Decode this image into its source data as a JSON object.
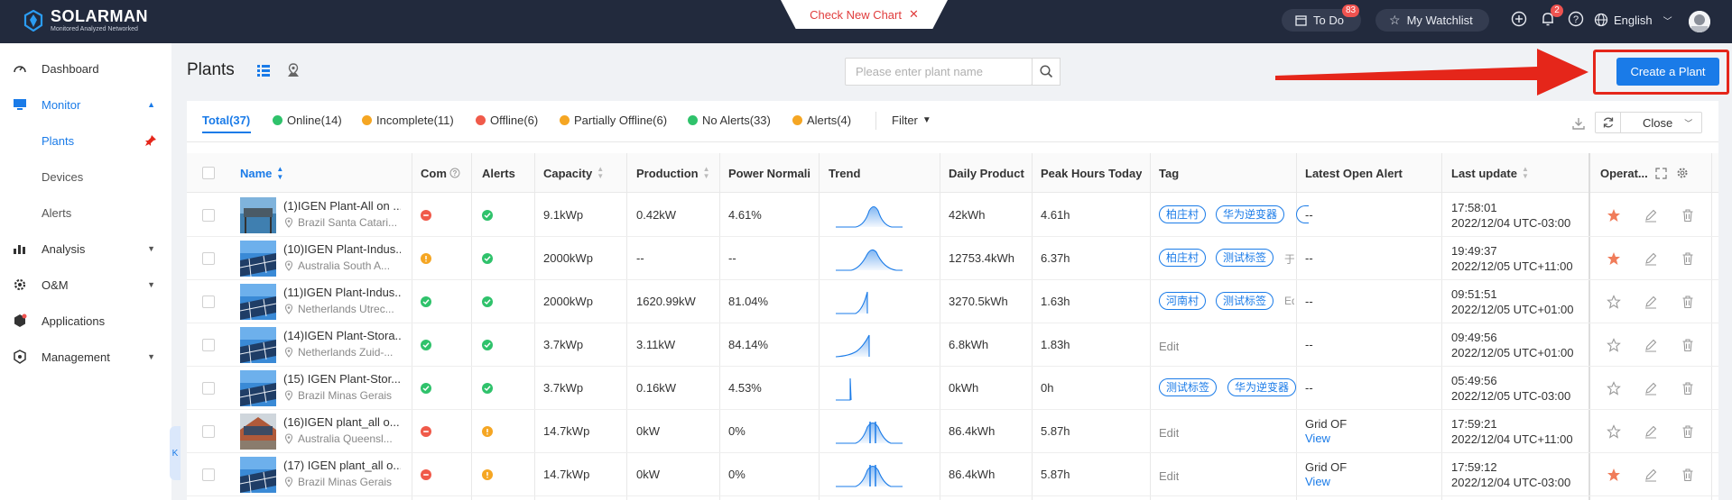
{
  "app": {
    "brand": "SOLARMAN",
    "brand_sub": "Monitored Analyzed Networked",
    "check_new_chart": "Check New Chart",
    "todo_label": "To Do",
    "todo_count": "83",
    "watchlist_label": "My Watchlist",
    "notif_count": "2",
    "language": "English"
  },
  "sidebar": {
    "items": [
      {
        "label": "Dashboard"
      },
      {
        "label": "Monitor"
      },
      {
        "label": "Plants"
      },
      {
        "label": "Devices"
      },
      {
        "label": "Alerts"
      },
      {
        "label": "Analysis"
      },
      {
        "label": "O&M"
      },
      {
        "label": "Applications"
      },
      {
        "label": "Management"
      }
    ],
    "collapse_glyph": "K"
  },
  "page": {
    "title": "Plants",
    "search_placeholder": "Please enter plant name",
    "create_label": "Create a Plant",
    "filter_label": "Filter",
    "close_label": "Close"
  },
  "filters": [
    {
      "label": "Total(37)",
      "dot": "none"
    },
    {
      "label": "Online(14)",
      "dot": "green"
    },
    {
      "label": "Incomplete(11)",
      "dot": "orange"
    },
    {
      "label": "Offline(6)",
      "dot": "red"
    },
    {
      "label": "Partially Offline(6)",
      "dot": "orange"
    },
    {
      "label": "No Alerts(33)",
      "dot": "green"
    },
    {
      "label": "Alerts(4)",
      "dot": "orange"
    }
  ],
  "columns": [
    "Name",
    "Com",
    "Alerts",
    "Capacity",
    "Production",
    "Power Normali",
    "Trend",
    "Daily Product",
    "Peak Hours Today",
    "Tag",
    "Latest Open Alert",
    "Last update",
    "Operat..."
  ],
  "rows": [
    {
      "name": "(1)IGEN Plant-All on ...",
      "loc": "Brazil Santa Catari...",
      "com": "err",
      "alert": "ok",
      "capacity": "9.1kWp",
      "production": "0.42kW",
      "power_norm": "4.61%",
      "daily": "42kWh",
      "peak": "4.61h",
      "tags": [
        "柏庄村",
        "华为逆变器",
        ""
      ],
      "edit": "",
      "alert_text": "--",
      "alert_link": "",
      "time": "17:58:01",
      "date": "2022/12/04 UTC-03:00",
      "fav": true,
      "thumb": "sea",
      "trend": "bell-dense"
    },
    {
      "name": "(10)IGEN Plant-Indus...",
      "loc": "Australia South A...",
      "com": "warn",
      "alert": "ok",
      "capacity": "2000kWp",
      "production": "--",
      "power_norm": "--",
      "daily": "12753.4kWh",
      "peak": "6.37h",
      "tags": [
        "柏庄村",
        "测试标签",
        "于"
      ],
      "edit": "",
      "alert_text": "--",
      "alert_link": "",
      "time": "19:49:37",
      "date": "2022/12/05 UTC+11:00",
      "fav": true,
      "thumb": "panel",
      "trend": "bell"
    },
    {
      "name": "(11)IGEN Plant-Indus...",
      "loc": "Netherlands Utrec...",
      "com": "ok",
      "alert": "ok",
      "capacity": "2000kWp",
      "production": "1620.99kW",
      "power_norm": "81.04%",
      "daily": "3270.5kWh",
      "peak": "1.63h",
      "tags": [
        "河南村",
        "测试标签",
        "Ed"
      ],
      "edit": "",
      "alert_text": "--",
      "alert_link": "",
      "time": "09:51:51",
      "date": "2022/12/05 UTC+01:00",
      "fav": false,
      "thumb": "panel",
      "trend": "rise"
    },
    {
      "name": "(14)IGEN Plant-Stora...",
      "loc": "Netherlands Zuid-...",
      "com": "ok",
      "alert": "ok",
      "capacity": "3.7kWp",
      "production": "3.11kW",
      "power_norm": "84.14%",
      "daily": "6.8kWh",
      "peak": "1.83h",
      "tags": [],
      "edit": "Edit",
      "alert_text": "--",
      "alert_link": "",
      "time": "09:49:56",
      "date": "2022/12/05 UTC+01:00",
      "fav": false,
      "thumb": "panel",
      "trend": "rise2"
    },
    {
      "name": "(15) IGEN Plant-Stor...",
      "loc": "Brazil Minas Gerais",
      "com": "ok",
      "alert": "ok",
      "capacity": "3.7kWp",
      "production": "0.16kW",
      "power_norm": "4.53%",
      "daily": "0kWh",
      "peak": "0h",
      "tags": [
        "测试标签",
        "华为逆变器"
      ],
      "edit": "",
      "alert_text": "--",
      "alert_link": "",
      "time": "05:49:56",
      "date": "2022/12/05 UTC-03:00",
      "fav": false,
      "thumb": "panel",
      "trend": "spike"
    },
    {
      "name": "(16)IGEN plant_all o...",
      "loc": "Australia Queensl...",
      "com": "err",
      "alert": "warn",
      "capacity": "14.7kWp",
      "production": "0kW",
      "power_norm": "0%",
      "daily": "86.4kWh",
      "peak": "5.87h",
      "tags": [],
      "edit": "Edit",
      "alert_text": "Grid OF",
      "alert_link": "View",
      "time": "17:59:21",
      "date": "2022/12/04 UTC+11:00",
      "fav": false,
      "thumb": "house",
      "trend": "bell-bars"
    },
    {
      "name": "(17) IGEN plant_all o...",
      "loc": "Brazil Minas Gerais",
      "com": "err",
      "alert": "warn",
      "capacity": "14.7kWp",
      "production": "0kW",
      "power_norm": "0%",
      "daily": "86.4kWh",
      "peak": "5.87h",
      "tags": [],
      "edit": "Edit",
      "alert_text": "Grid OF",
      "alert_link": "View",
      "time": "17:59:12",
      "date": "2022/12/04 UTC-03:00",
      "fav": true,
      "thumb": "panel",
      "trend": "bell-bars"
    }
  ],
  "colors": {
    "accent": "#1a7be8",
    "topbar": "#222a3d",
    "highlight": "#e5261a",
    "favorite": "#f07c5a"
  }
}
